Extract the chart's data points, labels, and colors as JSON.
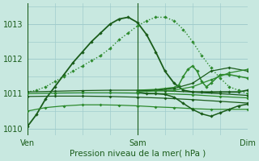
{
  "title": "Pression niveau de la mer( hPa )",
  "bg_color": "#c8e8e0",
  "grid_color": "#a0cccc",
  "line_color_dark": "#1a5c1a",
  "xlim": [
    0,
    48
  ],
  "ylim": [
    1009.8,
    1013.6
  ],
  "yticks": [
    1010,
    1011,
    1012,
    1013
  ],
  "xtick_labels": [
    "Ven",
    "Sam",
    "Dim"
  ],
  "xtick_positions": [
    0,
    24,
    48
  ],
  "series": [
    {
      "x": [
        0,
        2,
        4,
        6,
        8,
        10,
        12,
        14,
        16,
        18,
        20,
        22,
        24,
        26,
        28,
        30,
        32,
        34,
        36,
        38,
        40,
        42,
        44,
        46,
        48
      ],
      "y": [
        1010.05,
        1010.4,
        1010.85,
        1011.2,
        1011.55,
        1011.9,
        1012.2,
        1012.5,
        1012.75,
        1013.0,
        1013.15,
        1013.2,
        1013.05,
        1012.7,
        1012.2,
        1011.65,
        1011.3,
        1011.1,
        1011.05,
        1011.05,
        1011.05,
        1011.05,
        1011.05,
        1011.05,
        1011.1
      ],
      "style": "-",
      "marker": "D",
      "ms": 2.2,
      "lw": 1.3,
      "color": "#1a5c1a"
    },
    {
      "x": [
        0,
        2,
        4,
        6,
        8,
        10,
        12,
        14,
        16,
        18,
        20,
        22,
        24,
        26,
        28,
        30,
        32,
        34,
        36,
        38,
        40,
        42,
        44,
        46,
        48
      ],
      "y": [
        1011.05,
        1011.1,
        1011.2,
        1011.35,
        1011.5,
        1011.65,
        1011.8,
        1011.95,
        1012.1,
        1012.3,
        1012.55,
        1012.75,
        1012.95,
        1013.1,
        1013.2,
        1013.2,
        1013.1,
        1012.85,
        1012.5,
        1012.1,
        1011.75,
        1011.45,
        1011.2,
        1011.1,
        1011.0
      ],
      "style": ":",
      "marker": "D",
      "ms": 2.2,
      "lw": 1.0,
      "color": "#2d8a2d"
    },
    {
      "x": [
        0,
        6,
        12,
        18,
        24,
        30,
        36,
        42,
        48
      ],
      "y": [
        1011.05,
        1011.07,
        1011.09,
        1011.1,
        1011.1,
        1011.08,
        1011.05,
        1011.0,
        1010.95
      ],
      "style": "-",
      "marker": "D",
      "ms": 2.0,
      "lw": 0.9,
      "color": "#1a5c1a"
    },
    {
      "x": [
        0,
        6,
        12,
        18,
        24,
        30,
        36,
        42,
        48
      ],
      "y": [
        1011.0,
        1011.02,
        1011.03,
        1011.03,
        1011.02,
        1011.0,
        1010.97,
        1010.92,
        1010.88
      ],
      "style": "-",
      "marker": "D",
      "ms": 2.0,
      "lw": 0.9,
      "color": "#2d8a2d"
    },
    {
      "x": [
        0,
        6,
        12,
        18,
        24,
        30,
        36,
        42,
        48
      ],
      "y": [
        1010.92,
        1010.93,
        1010.93,
        1010.92,
        1010.9,
        1010.87,
        1010.83,
        1010.78,
        1010.73
      ],
      "style": "-",
      "marker": "D",
      "ms": 2.0,
      "lw": 0.9,
      "color": "#1a5c1a"
    },
    {
      "x": [
        0,
        4,
        8,
        12,
        16,
        20,
        24,
        28,
        32,
        36,
        40,
        44,
        48
      ],
      "y": [
        1010.5,
        1010.6,
        1010.65,
        1010.68,
        1010.68,
        1010.67,
        1010.65,
        1010.62,
        1010.6,
        1010.57,
        1010.55,
        1010.55,
        1010.55
      ],
      "style": "-",
      "marker": "D",
      "ms": 2.0,
      "lw": 0.9,
      "color": "#2d8a2d"
    },
    {
      "x": [
        24,
        28,
        30,
        32,
        33,
        34,
        35,
        36,
        37,
        38,
        39,
        40,
        42,
        44,
        46,
        48
      ],
      "y": [
        1011.1,
        1011.12,
        1011.15,
        1011.18,
        1011.25,
        1011.5,
        1011.7,
        1011.8,
        1011.65,
        1011.35,
        1011.2,
        1011.3,
        1011.55,
        1011.55,
        1011.5,
        1011.45
      ],
      "style": "-",
      "marker": "D",
      "ms": 2.2,
      "lw": 1.1,
      "color": "#2d8a2d"
    },
    {
      "x": [
        24,
        26,
        28,
        30,
        32,
        34,
        36,
        38,
        40,
        42,
        44,
        46,
        48
      ],
      "y": [
        1011.05,
        1011.0,
        1011.0,
        1010.98,
        1010.9,
        1010.72,
        1010.55,
        1010.42,
        1010.35,
        1010.45,
        1010.55,
        1010.65,
        1010.7
      ],
      "style": "-",
      "marker": "D",
      "ms": 2.2,
      "lw": 1.1,
      "color": "#1a5c1a"
    },
    {
      "x": [
        24,
        28,
        32,
        36,
        40,
        44,
        48
      ],
      "y": [
        1011.08,
        1011.1,
        1011.15,
        1011.3,
        1011.65,
        1011.75,
        1011.65
      ],
      "style": "-",
      "marker": "D",
      "ms": 2.0,
      "lw": 0.9,
      "color": "#1a5c1a"
    },
    {
      "x": [
        24,
        28,
        32,
        36,
        40,
        44,
        48
      ],
      "y": [
        1011.05,
        1011.08,
        1011.1,
        1011.2,
        1011.4,
        1011.6,
        1011.7
      ],
      "style": "-",
      "marker": "D",
      "ms": 2.0,
      "lw": 0.9,
      "color": "#2d8a2d"
    }
  ]
}
